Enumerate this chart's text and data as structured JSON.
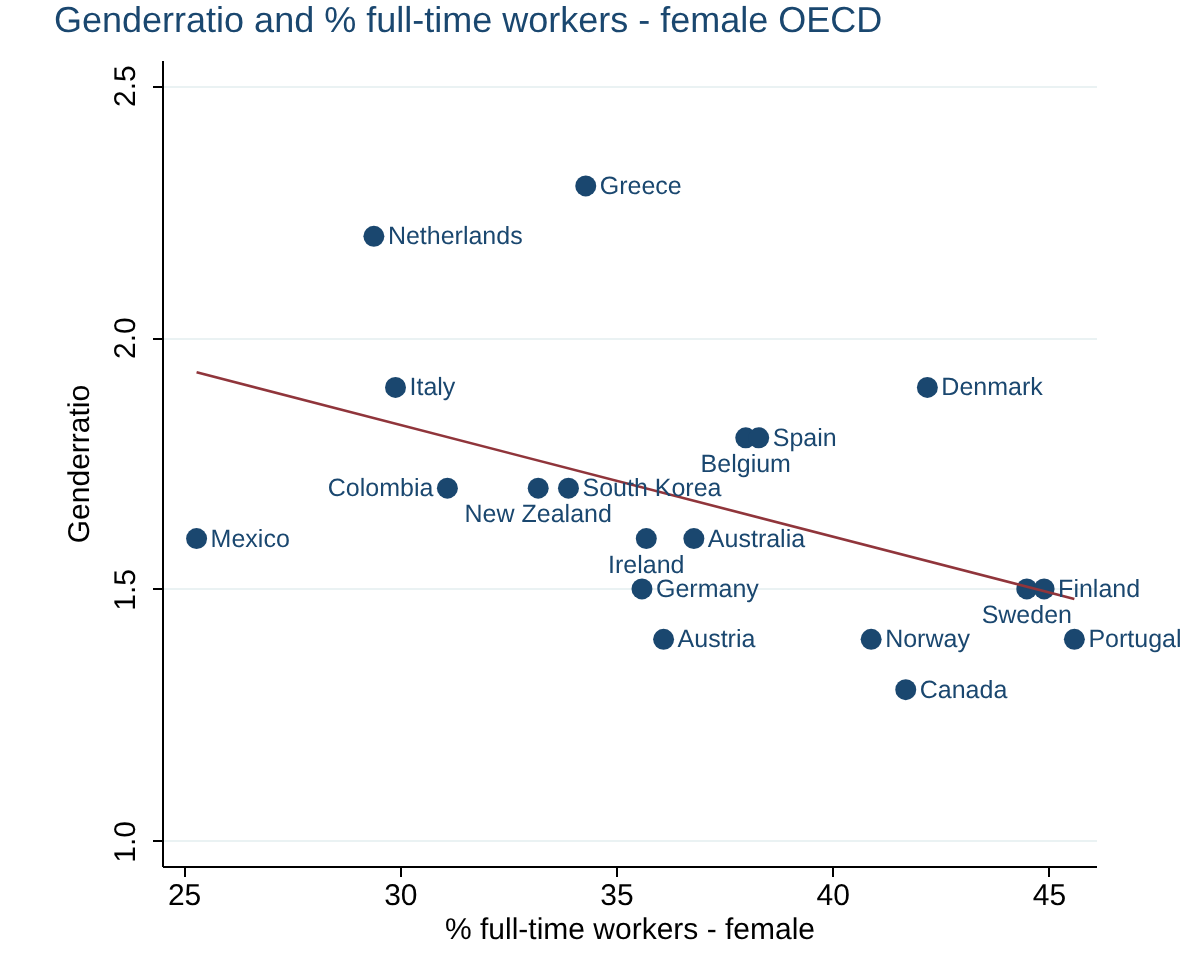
{
  "chart_data": {
    "type": "scatter",
    "title": "Genderratio and % full-time workers - female OECD",
    "xlabel": "% full-time workers - female",
    "ylabel": "Genderratio",
    "series": [
      {
        "color": "#1a476f",
        "marker": "circle",
        "x": [
          25.3,
          29.4,
          29.9,
          34.3,
          31.1,
          33.2,
          33.9,
          38.0,
          38.3,
          35.7,
          36.8,
          35.6,
          36.1,
          40.9,
          41.7,
          42.2,
          44.5,
          44.9,
          45.6
        ],
        "values": [
          1.6,
          2.2,
          1.9,
          2.3,
          1.7,
          1.7,
          1.7,
          1.8,
          1.8,
          1.6,
          1.6,
          1.5,
          1.4,
          1.4,
          1.3,
          1.9,
          1.5,
          1.5,
          1.4
        ]
      },
      {
        "type": "line",
        "color": "#90353b",
        "x": [
          25.3,
          45.6
        ],
        "values": [
          1.93,
          1.48
        ]
      }
    ],
    "annotations": [
      {
        "text": "Mexico",
        "x": 25.3,
        "y": 1.6
      },
      {
        "text": "Netherlands",
        "x": 29.4,
        "y": 2.2
      },
      {
        "text": "Italy",
        "x": 29.9,
        "y": 1.9
      },
      {
        "text": "Greece",
        "x": 34.3,
        "y": 2.3
      },
      {
        "text": "Colombia",
        "x": 31.1,
        "y": 1.7
      },
      {
        "text": "New Zealand",
        "x": 33.2,
        "y": 1.7
      },
      {
        "text": "South Korea",
        "x": 33.9,
        "y": 1.7
      },
      {
        "text": "Belgium",
        "x": 38.0,
        "y": 1.8
      },
      {
        "text": "Spain",
        "x": 38.3,
        "y": 1.8
      },
      {
        "text": "Ireland",
        "x": 35.7,
        "y": 1.6
      },
      {
        "text": "Australia",
        "x": 36.8,
        "y": 1.6
      },
      {
        "text": "Germany",
        "x": 35.6,
        "y": 1.5
      },
      {
        "text": "Austria",
        "x": 36.1,
        "y": 1.4
      },
      {
        "text": "Norway",
        "x": 40.9,
        "y": 1.4
      },
      {
        "text": "Canada",
        "x": 41.7,
        "y": 1.3
      },
      {
        "text": "Denmark",
        "x": 42.2,
        "y": 1.9
      },
      {
        "text": "Sweden",
        "x": 44.5,
        "y": 1.5
      },
      {
        "text": "Finland",
        "x": 44.9,
        "y": 1.5
      },
      {
        "text": "Portugal",
        "x": 45.6,
        "y": 1.4
      }
    ],
    "xlim": [
      24.5,
      46.1
    ],
    "xticks": [
      25,
      30,
      35,
      40,
      45
    ],
    "ylim": [
      0.95,
      2.55
    ],
    "yticks": [
      {
        "value": 1,
        "label": "1.0"
      },
      1.5,
      {
        "value": 2,
        "label": "2.0"
      },
      2.5
    ],
    "grid": "y"
  }
}
